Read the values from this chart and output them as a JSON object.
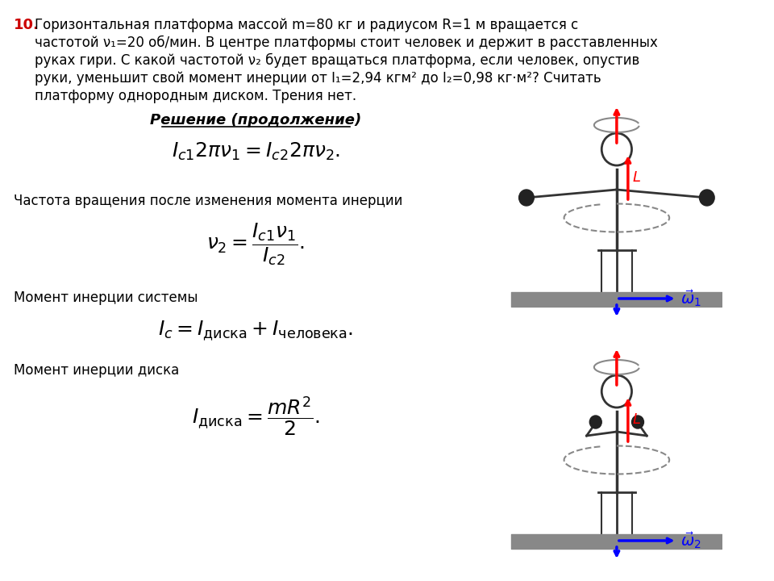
{
  "problem_number": "10.",
  "problem_text_line1": "Горизонтальная платформа массой m=80 кг и радиусом R=1 м вращается с",
  "problem_text_line2": "частотой ν₁=20 об/мин. В центре платформы стоит человек и держит в расставленных",
  "problem_text_line3": "руках гири. С какой частотой ν₂ будет вращаться платформа, если человек, опустив",
  "problem_text_line4": "руки, уменьшит свой момент инерции от I₁=2,94 кгм² до I₂=0,98 кг·м²? Считать",
  "problem_text_line5": "платформу однородным диском. Трения нет.",
  "solution_header": "Решение (продолжение)",
  "text1": "Частота вращения после изменения момента инерции",
  "text2": "Момент инерции системы",
  "text3": "Момент инерции диска",
  "bg_color": "#ffffff",
  "text_color": "#000000",
  "red_color": "#cc0000",
  "number_color": "#cc0000"
}
